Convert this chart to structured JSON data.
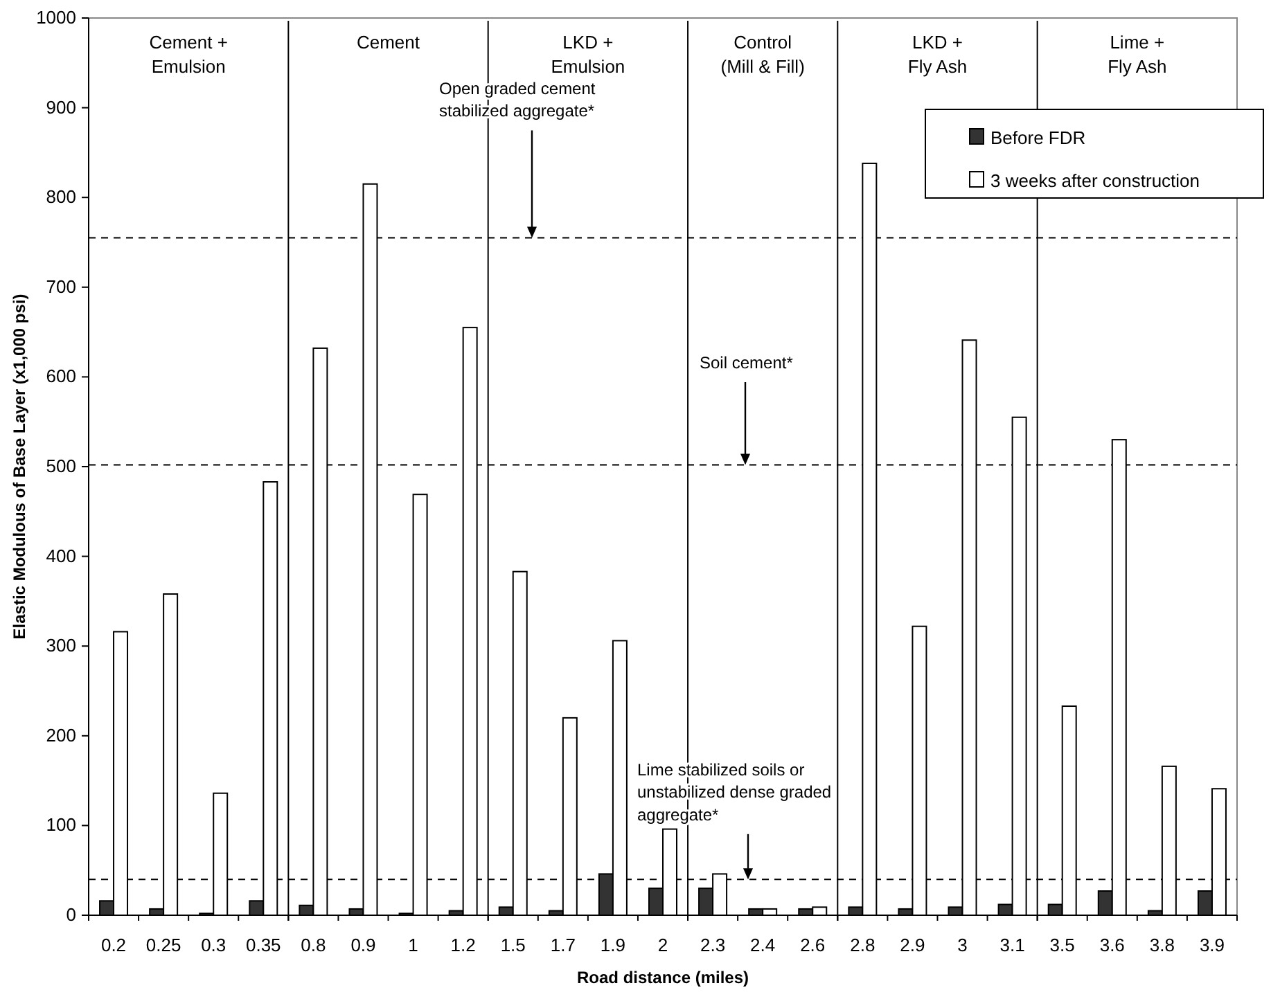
{
  "chart_data": {
    "type": "bar",
    "xlabel": "Road distance (miles)",
    "ylabel": "Elastic Modulous of Base Layer (x1,000 psi)",
    "categories": [
      "0.2",
      "0.25",
      "0.3",
      "0.35",
      "0.8",
      "0.9",
      "1",
      "1.2",
      "1.5",
      "1.7",
      "1.9",
      "2",
      "2.3",
      "2.4",
      "2.6",
      "2.8",
      "2.9",
      "3",
      "3.1",
      "3.5",
      "3.6",
      "3.8",
      "3.9"
    ],
    "series": [
      {
        "name": "Before FDR",
        "color": "#333333",
        "values": [
          16,
          7,
          2,
          16,
          11,
          7,
          2,
          5,
          9,
          5,
          46,
          30,
          30,
          7,
          7,
          9,
          7,
          9,
          12,
          12,
          27,
          5,
          27
        ]
      },
      {
        "name": "3 weeks after construction",
        "color": "#ffffff",
        "values": [
          316,
          358,
          136,
          483,
          632,
          815,
          469,
          655,
          383,
          220,
          306,
          96,
          46,
          7,
          9,
          838,
          322,
          641,
          555,
          233,
          530,
          166,
          141
        ]
      }
    ],
    "ylim": [
      0,
      1000
    ],
    "yticks": [
      0,
      100,
      200,
      300,
      400,
      500,
      600,
      700,
      800,
      900,
      1000
    ],
    "grid": false,
    "legend": "top right",
    "ref_lines": [
      {
        "axis": "y",
        "value": 755,
        "label": "Open graded cement\nstabilized aggregate*",
        "line_style": "dashed",
        "color": "#000000"
      },
      {
        "axis": "y",
        "value": 502,
        "label": "Soil cement*",
        "line_style": "dashed",
        "color": "#000000"
      },
      {
        "axis": "y",
        "value": 40,
        "label": "Lime stabilized soils or\nunstabilized dense graded\naggregate*",
        "line_style": "dashed",
        "color": "#000000"
      }
    ],
    "annotations": [
      "Cement +\nEmulsion",
      "Cement",
      "LKD +\nEmulsion",
      "Control\n(Mill & Fill)",
      "LKD +\nFly Ash",
      "Lime +\nFly Ash"
    ]
  }
}
